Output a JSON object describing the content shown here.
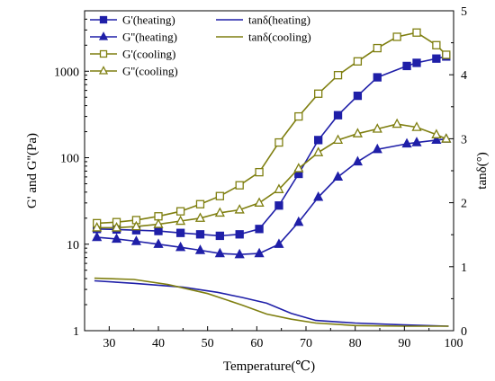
{
  "chart_data": {
    "type": "line",
    "xlabel": "Temperature(℃)",
    "ylabel_left": "G' and G''(Pa)",
    "ylabel_right": "tanδ(°)",
    "xlim": [
      25,
      100
    ],
    "xticks": [
      30,
      40,
      50,
      60,
      70,
      80,
      90,
      100
    ],
    "ylim_left": [
      1,
      5000
    ],
    "yscale_left": "log",
    "yticks_left": [
      1,
      10,
      100,
      1000
    ],
    "ylim_right": [
      0,
      5
    ],
    "yticks_right": [
      0,
      1,
      2,
      3,
      4,
      5
    ],
    "grid": false,
    "legend_placement": "top-left",
    "series": [
      {
        "name": "G'(heating)",
        "axis": "left",
        "color": "#1f1fa8",
        "marker": "square-filled",
        "x": [
          27.5,
          31.5,
          35.5,
          40,
          44.5,
          48.5,
          52.5,
          56.5,
          60.5,
          64.5,
          68.5,
          72.5,
          76.5,
          80.5,
          84.5,
          90.5,
          92.5,
          96.5,
          98.5
        ],
        "y": [
          15,
          14.8,
          14.5,
          14.2,
          13.5,
          13,
          12.5,
          13,
          15,
          28,
          65,
          160,
          310,
          520,
          850,
          1150,
          1250,
          1400,
          1480
        ]
      },
      {
        "name": "G''(heating)",
        "axis": "left",
        "color": "#1f1fa8",
        "marker": "triangle-filled",
        "x": [
          27.5,
          31.5,
          35.5,
          40,
          44.5,
          48.5,
          52.5,
          56.5,
          60.5,
          64.5,
          68.5,
          72.5,
          76.5,
          80.5,
          84.5,
          90.5,
          92.5,
          96.5,
          98.5
        ],
        "y": [
          12,
          11.5,
          10.8,
          10,
          9.2,
          8.5,
          7.8,
          7.6,
          7.8,
          10,
          18,
          35,
          60,
          90,
          125,
          145,
          150,
          160,
          165
        ]
      },
      {
        "name": "G'(cooling)",
        "axis": "left",
        "color": "#7f7f10",
        "marker": "square-open",
        "x": [
          27.5,
          31.5,
          35.5,
          40,
          44.5,
          48.5,
          52.5,
          56.5,
          60.5,
          64.5,
          68.5,
          72.5,
          76.5,
          80.5,
          84.5,
          88.5,
          92.5,
          96.5,
          98.5
        ],
        "y": [
          17.5,
          18,
          19,
          21,
          24,
          29,
          36,
          48,
          68,
          150,
          300,
          550,
          900,
          1300,
          1850,
          2500,
          2800,
          2000,
          1550
        ]
      },
      {
        "name": "G''(cooling)",
        "axis": "left",
        "color": "#7f7f10",
        "marker": "triangle-open",
        "x": [
          27.5,
          31.5,
          35.5,
          40,
          44.5,
          48.5,
          52.5,
          56.5,
          60.5,
          64.5,
          68.5,
          72.5,
          76.5,
          80.5,
          84.5,
          88.5,
          92.5,
          96.5,
          98.5
        ],
        "y": [
          15.5,
          15.5,
          16,
          17,
          18.5,
          20,
          23,
          25,
          30,
          43,
          75,
          115,
          160,
          190,
          215,
          245,
          225,
          185,
          165
        ]
      },
      {
        "name": "tanδ(heating)",
        "axis": "right",
        "color": "#1f1fa8",
        "marker": "none",
        "x": [
          27,
          35,
          45,
          52,
          57,
          62,
          67,
          72,
          80,
          90,
          99
        ],
        "y": [
          0.78,
          0.74,
          0.68,
          0.6,
          0.52,
          0.43,
          0.27,
          0.16,
          0.12,
          0.09,
          0.07
        ]
      },
      {
        "name": "tanδ(cooling)",
        "axis": "right",
        "color": "#7f7f10",
        "marker": "none",
        "x": [
          27,
          35,
          42,
          50,
          57,
          62,
          67,
          72,
          80,
          90,
          99
        ],
        "y": [
          0.82,
          0.8,
          0.72,
          0.58,
          0.4,
          0.26,
          0.18,
          0.12,
          0.08,
          0.07,
          0.07
        ]
      }
    ]
  }
}
